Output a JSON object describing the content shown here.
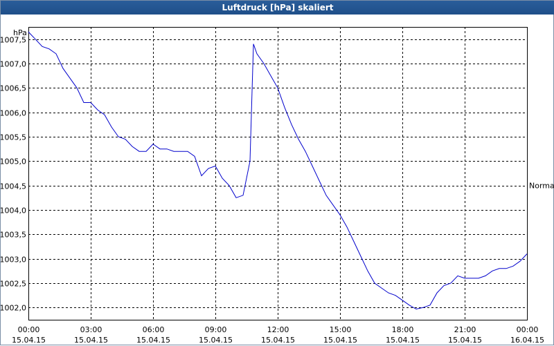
{
  "window": {
    "title": "Luftdruck [hPa] skaliert"
  },
  "chart_data": {
    "type": "line",
    "title": "Luftdruck [hPa] skaliert",
    "ylabel": "hPa",
    "xlabel": "",
    "ylim": [
      1001.75,
      1007.75
    ],
    "xlim": [
      "15.04.15 00:00",
      "16.04.15 00:00"
    ],
    "grid": true,
    "y_ticks": [
      "1002,0",
      "1002,5",
      "1003,0",
      "1003,5",
      "1004,0",
      "1004,5",
      "1005,0",
      "1005,5",
      "1006,0",
      "1006,5",
      "1007,0",
      "1007,5"
    ],
    "x_ticks": [
      {
        "time": "00:00",
        "date": "15.04.15"
      },
      {
        "time": "03:00",
        "date": "15.04.15"
      },
      {
        "time": "06:00",
        "date": "15.04.15"
      },
      {
        "time": "09:00",
        "date": "15.04.15"
      },
      {
        "time": "12:00",
        "date": "15.04.15"
      },
      {
        "time": "15:00",
        "date": "15.04.15"
      },
      {
        "time": "18:00",
        "date": "15.04.15"
      },
      {
        "time": "21:00",
        "date": "15.04.15"
      },
      {
        "time": "00:00",
        "date": "16.04.15"
      }
    ],
    "reference_line": {
      "label": "Normal",
      "value": 1004.5
    },
    "series": [
      {
        "color": "#0000cc",
        "x": [
          "00:00",
          "00:20",
          "00:40",
          "01:00",
          "01:20",
          "01:40",
          "02:00",
          "02:20",
          "02:40",
          "03:00",
          "03:20",
          "03:40",
          "04:00",
          "04:20",
          "04:40",
          "05:00",
          "05:20",
          "05:40",
          "06:00",
          "06:20",
          "06:40",
          "07:00",
          "07:20",
          "07:40",
          "08:00",
          "08:20",
          "08:40",
          "09:00",
          "09:20",
          "09:40",
          "10:00",
          "10:20",
          "10:40",
          "10:50",
          "11:00",
          "11:20",
          "11:40",
          "12:00",
          "12:20",
          "12:40",
          "13:00",
          "13:20",
          "13:40",
          "14:00",
          "14:20",
          "14:40",
          "15:00",
          "15:20",
          "15:40",
          "16:00",
          "16:20",
          "16:40",
          "17:00",
          "17:20",
          "17:40",
          "18:00",
          "18:20",
          "18:40",
          "19:00",
          "19:20",
          "19:40",
          "20:00",
          "20:20",
          "20:40",
          "21:00",
          "21:20",
          "21:40",
          "22:00",
          "22:20",
          "22:40",
          "23:00",
          "23:20",
          "23:40",
          "24:00"
        ],
        "values": [
          1007.65,
          1007.5,
          1007.35,
          1007.3,
          1007.2,
          1006.9,
          1006.7,
          1006.5,
          1006.2,
          1006.2,
          1006.05,
          1005.95,
          1005.7,
          1005.5,
          1005.45,
          1005.3,
          1005.2,
          1005.2,
          1005.35,
          1005.25,
          1005.25,
          1005.2,
          1005.2,
          1005.2,
          1005.1,
          1004.7,
          1004.85,
          1004.9,
          1004.65,
          1004.5,
          1004.25,
          1004.3,
          1005.0,
          1007.4,
          1007.2,
          1007.0,
          1006.75,
          1006.5,
          1006.1,
          1005.75,
          1005.45,
          1005.2,
          1004.9,
          1004.6,
          1004.3,
          1004.1,
          1003.9,
          1003.65,
          1003.35,
          1003.05,
          1002.75,
          1002.5,
          1002.4,
          1002.3,
          1002.25,
          1002.15,
          1002.05,
          1001.97,
          1002.0,
          1002.05,
          1002.3,
          1002.45,
          1002.5,
          1002.65,
          1002.6,
          1002.6,
          1002.6,
          1002.65,
          1002.75,
          1002.8,
          1002.8,
          1002.85,
          1002.95,
          1003.1
        ]
      }
    ]
  }
}
